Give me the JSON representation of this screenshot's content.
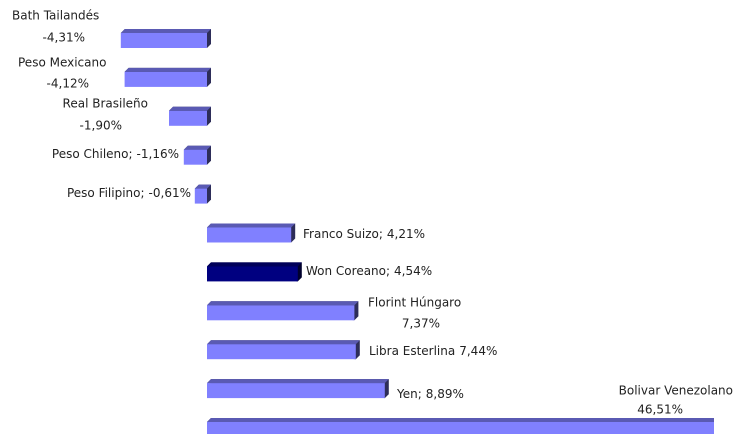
{
  "chart_data": {
    "type": "bar",
    "orientation": "horizontal",
    "categories": [
      "Bath Tailandés",
      "Peso Mexicano",
      "Real Brasileño",
      "Peso Chileno;",
      "Peso Filipino;",
      "Franco Suizo;",
      "Won Coreano;",
      "Florint Húngaro",
      "Libra Esterlina",
      "Yen;",
      "Bolivar Venezolano"
    ],
    "values": [
      -4.31,
      -4.12,
      -1.9,
      -1.16,
      -0.61,
      4.21,
      4.54,
      7.37,
      7.44,
      8.89,
      46.51
    ],
    "value_labels": [
      "-4,31%",
      "-4,12%",
      "-1,90%",
      "-1,16%",
      "-0,61%",
      "4,21%",
      "4,54%",
      "7,37%",
      "7,44%",
      "8,89%",
      "46,51%"
    ],
    "colors": [
      "#8080ff",
      "#8080ff",
      "#8080ff",
      "#8080ff",
      "#8080ff",
      "#8080ff",
      "#000080",
      "#8080ff",
      "#8080ff",
      "#8080ff",
      "#8080ff"
    ],
    "xlim": [
      -4.5,
      25
    ]
  }
}
